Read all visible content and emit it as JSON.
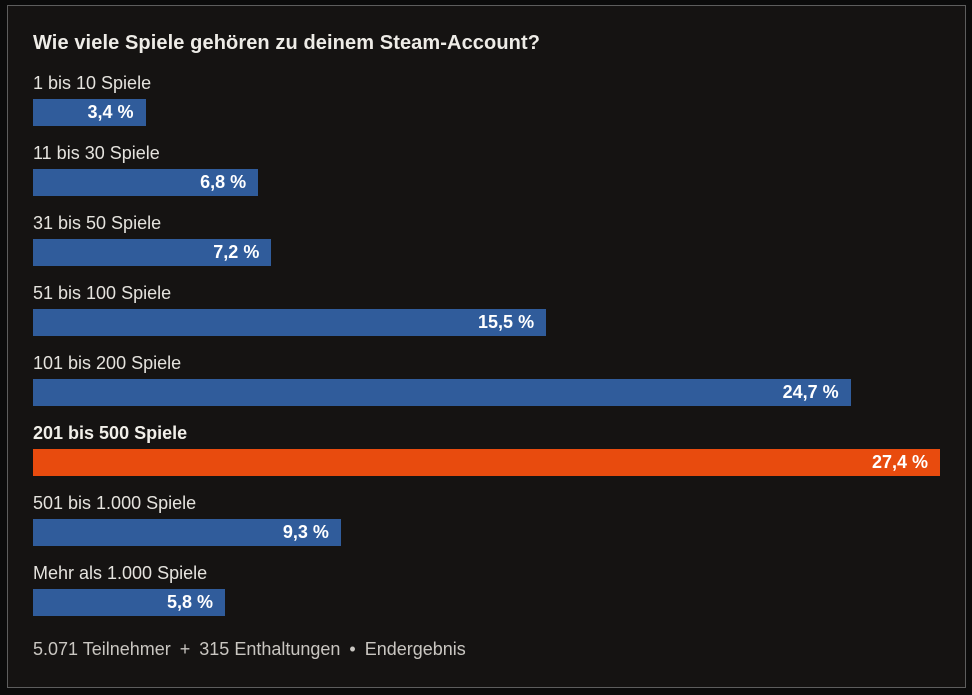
{
  "chart_data": {
    "type": "bar",
    "orientation": "horizontal",
    "title": "Wie viele Spiele gehören zu deinem Steam-Account?",
    "unit": "%",
    "scale_max": 27.4,
    "xlim": [
      0,
      27.4
    ],
    "grid": false,
    "legend": false,
    "categories": [
      "1 bis 10 Spiele",
      "11 bis 30 Spiele",
      "31 bis 50 Spiele",
      "51 bis 100 Spiele",
      "101 bis 200 Spiele",
      "201 bis 500 Spiele",
      "501 bis 1.000 Spiele",
      "Mehr als 1.000 Spiele"
    ],
    "values": [
      3.4,
      6.8,
      7.2,
      15.5,
      24.7,
      27.4,
      9.3,
      5.8
    ],
    "value_labels": [
      "3,4 %",
      "6,8 %",
      "7,2 %",
      "15,5 %",
      "24,7 %",
      "27,4 %",
      "9,3 %",
      "5,8 %"
    ],
    "highlighted_index": 5,
    "colors": {
      "bar": "#305c9b",
      "highlight": "#e84b0e",
      "value_text": "#ffffff",
      "panel_background": "#151312",
      "label_text": "#e5e3de"
    }
  },
  "footer": {
    "participants": "5.071 Teilnehmer",
    "separator1": "+",
    "abstentions": "315 Enthaltungen",
    "separator2": "•",
    "status": "Endergebnis"
  }
}
